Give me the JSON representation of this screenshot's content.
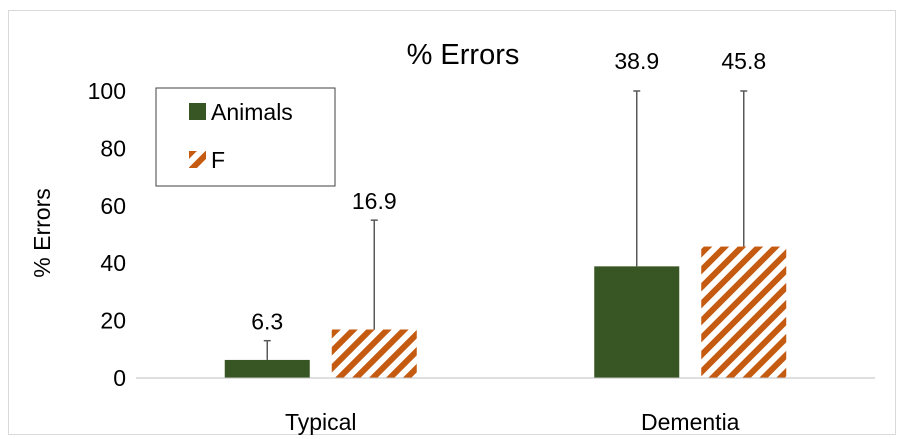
{
  "chart_data": {
    "type": "bar",
    "title": "% Errors",
    "xlabel": "",
    "ylabel": "% Errors",
    "ylim": [
      0,
      100
    ],
    "yticks": [
      0,
      20,
      40,
      60,
      80,
      100
    ],
    "grid": false,
    "legend_position": "top-left",
    "categories": [
      "Typical",
      "Dementia"
    ],
    "series": [
      {
        "name": "Animals",
        "values": [
          6.3,
          38.9
        ],
        "error_upper": [
          13,
          100
        ],
        "color": "#375623",
        "pattern": "solid"
      },
      {
        "name": "F",
        "values": [
          16.9,
          45.8
        ],
        "error_upper": [
          55,
          100
        ],
        "color": "#C55A11",
        "pattern": "diagonal-hatch"
      }
    ],
    "data_labels": [
      [
        "6.3",
        "38.9"
      ],
      [
        "16.9",
        "45.8"
      ]
    ]
  }
}
